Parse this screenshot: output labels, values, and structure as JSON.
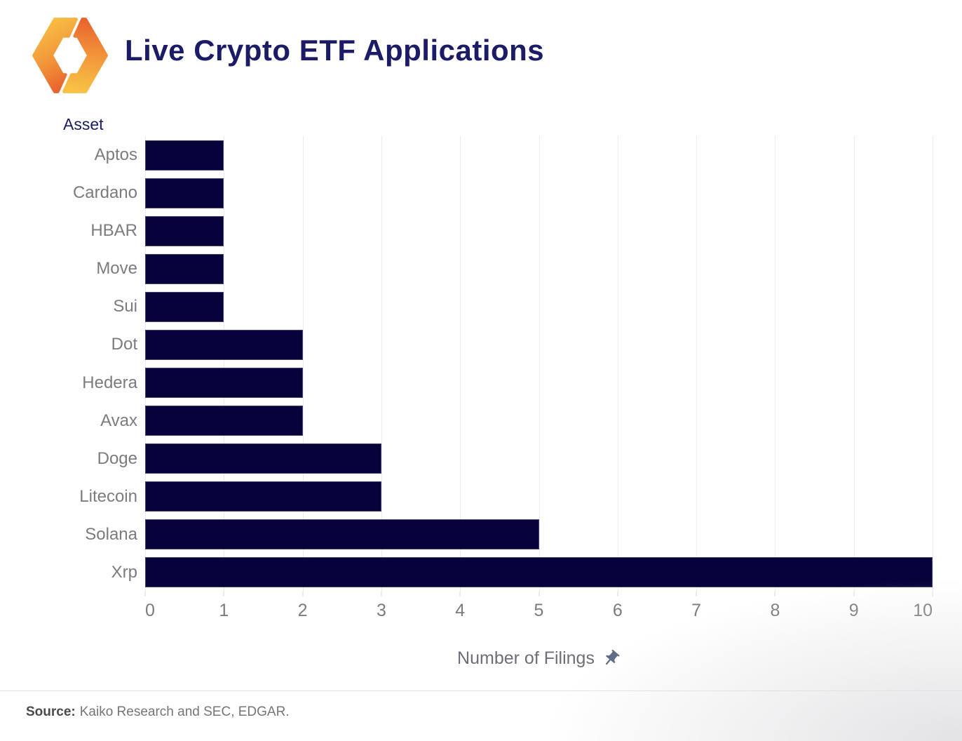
{
  "header": {
    "title": "Live Crypto ETF Applications",
    "logo": "kaiko-logo"
  },
  "chart_data": {
    "type": "bar",
    "orientation": "horizontal",
    "title": "Live Crypto ETF Applications",
    "ylabel": "Asset",
    "xlabel": "Number of Filings",
    "categories": [
      "Aptos",
      "Cardano",
      "HBAR",
      "Move",
      "Sui",
      "Dot",
      "Hedera",
      "Avax",
      "Doge",
      "Litecoin",
      "Solana",
      "Xrp"
    ],
    "values": [
      1,
      1,
      1,
      1,
      1,
      2,
      2,
      2,
      3,
      3,
      5,
      10
    ],
    "xlim": [
      0,
      10
    ],
    "xticks": [
      0,
      1,
      2,
      3,
      4,
      5,
      6,
      7,
      8,
      9,
      10
    ],
    "grid": true,
    "legend": "none",
    "bar_color": "#050339"
  },
  "icons": {
    "xlabel_pin": "pushpin-icon",
    "logo": "kaiko-logo"
  },
  "footer": {
    "source_label": "Source:",
    "source_text": "Kaiko Research and SEC, EDGAR."
  },
  "colors": {
    "title": "#1b1b67",
    "bar": "#050339",
    "grid": "#ececf0",
    "tick": "#d9d9de",
    "axis_text": "#7c7c7c",
    "xlabel_text": "#6e6e78",
    "pin": "#5b6c84",
    "divider": "#e2e2e2",
    "source_label": "#4a4a4a",
    "source_text": "#757575",
    "logo_yellow": "#f8c245",
    "logo_orange": "#e8622d"
  }
}
